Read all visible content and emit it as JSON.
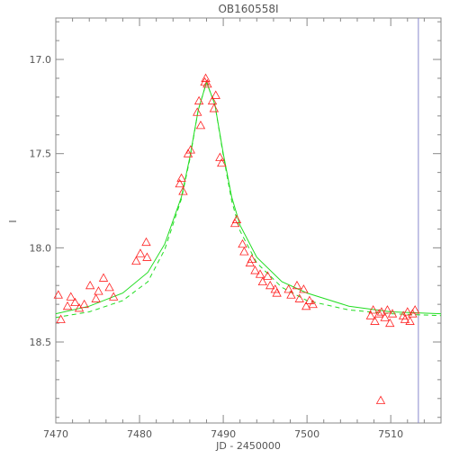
{
  "chart_data": {
    "type": "scatter",
    "title": "OB160558I",
    "xlabel": "JD - 2450000",
    "ylabel": "I",
    "xlim": [
      7470,
      7516
    ],
    "ylim": [
      18.93,
      16.78
    ],
    "y_inverted": true,
    "x_ticks": [
      7470,
      7480,
      7490,
      7500,
      7510
    ],
    "y_ticks": [
      17.0,
      17.5,
      18.0,
      18.5
    ],
    "x_tick_labels": [
      "7470",
      "7480",
      "7490",
      "7500",
      "7510"
    ],
    "y_tick_labels": [
      "17.0",
      "17.5",
      "18.0",
      "18.5"
    ],
    "grid": false,
    "vertical_marker_x": 7513.3,
    "colors": {
      "points": "#ff2020",
      "model": "#22dd22",
      "marker_line": "#8888cc",
      "axes": "#888888",
      "text": "#555555"
    },
    "series": [
      {
        "type": "scatter",
        "marker": "triangle",
        "x": [
          7470.3,
          7470.6,
          7471.4,
          7471.8,
          7472.3,
          7472.8,
          7473.4,
          7474.1,
          7474.8,
          7475.1,
          7475.7,
          7476.4,
          7476.9,
          7479.6,
          7480.1,
          7480.8,
          7480.9,
          7484.8,
          7485.0,
          7485.2,
          7485.8,
          7486.1,
          7486.9,
          7487.1,
          7487.3,
          7487.8,
          7487.9,
          7488.1,
          7488.7,
          7488.9,
          7489.1,
          7489.6,
          7489.8,
          7491.4,
          7491.6,
          7492.3,
          7492.5,
          7493.2,
          7493.4,
          7493.8,
          7494.4,
          7494.7,
          7495.3,
          7495.6,
          7496.2,
          7496.4,
          7497.8,
          7498.1,
          7498.8,
          7499.1,
          7499.6,
          7499.9,
          7500.3,
          7500.7,
          7507.6,
          7507.9,
          7508.1,
          7508.6,
          7508.9,
          7509.3,
          7509.6,
          7509.9,
          7510.2,
          7511.5,
          7511.7,
          7512.0,
          7512.3,
          7512.6,
          7512.9,
          7508.8
        ],
        "y": [
          18.25,
          18.38,
          18.31,
          18.26,
          18.29,
          18.32,
          18.3,
          18.2,
          18.27,
          18.23,
          18.16,
          18.21,
          18.26,
          18.07,
          18.03,
          17.97,
          18.05,
          17.66,
          17.63,
          17.7,
          17.5,
          17.48,
          17.28,
          17.22,
          17.35,
          17.12,
          17.1,
          17.13,
          17.22,
          17.26,
          17.19,
          17.52,
          17.55,
          17.87,
          17.85,
          17.98,
          18.02,
          18.08,
          18.06,
          18.12,
          18.14,
          18.18,
          18.15,
          18.2,
          18.22,
          18.24,
          18.22,
          18.25,
          18.2,
          18.27,
          18.22,
          18.31,
          18.28,
          18.3,
          18.36,
          18.33,
          18.39,
          18.35,
          18.34,
          18.37,
          18.33,
          18.4,
          18.35,
          18.36,
          18.38,
          18.34,
          18.39,
          18.35,
          18.33,
          18.81
        ]
      },
      {
        "type": "line",
        "style": "solid",
        "x": [
          7470,
          7474,
          7478,
          7481,
          7483,
          7485,
          7486,
          7487,
          7488,
          7489,
          7490,
          7491,
          7492,
          7494,
          7497,
          7500,
          7505,
          7510,
          7516
        ],
        "y": [
          18.35,
          18.31,
          18.24,
          18.13,
          17.98,
          17.73,
          17.52,
          17.27,
          17.12,
          17.24,
          17.5,
          17.73,
          17.88,
          18.05,
          18.18,
          18.24,
          18.31,
          18.34,
          18.35
        ]
      },
      {
        "type": "line",
        "style": "dashed",
        "x": [
          7470,
          7474,
          7478,
          7481,
          7483,
          7485,
          7486,
          7487,
          7488,
          7489,
          7490,
          7491,
          7492,
          7494,
          7497,
          7500,
          7505,
          7510,
          7516
        ],
        "y": [
          18.37,
          18.34,
          18.28,
          18.18,
          18.01,
          17.74,
          17.53,
          17.27,
          17.12,
          17.24,
          17.51,
          17.75,
          17.91,
          18.08,
          18.21,
          18.28,
          18.33,
          18.35,
          18.36
        ]
      }
    ]
  }
}
